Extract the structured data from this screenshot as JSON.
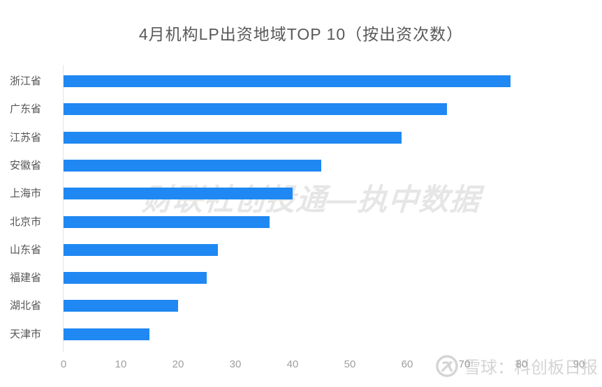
{
  "title": "4月机构LP出资地域TOP 10（按出资次数）",
  "watermarks": {
    "center": "财联社创投通—执中数据",
    "bottom_text": "雪球：科创板日报",
    "bottom_logo": "xueqiu-snowball-icon"
  },
  "colors": {
    "bar": "#2088f2",
    "title": "#595959",
    "category_label": "#555555",
    "tick_label": "#9e9e9e",
    "axis_line": "#e4e4e4",
    "watermark": "#c9c9c9"
  },
  "chart_data": {
    "type": "bar",
    "orientation": "horizontal",
    "title": "4月机构LP出资地域TOP 10（按出资次数）",
    "categories": [
      "浙江省",
      "广东省",
      "江苏省",
      "安徽省",
      "上海市",
      "北京市",
      "山东省",
      "福建省",
      "湖北省",
      "天津市"
    ],
    "values": [
      78,
      67,
      59,
      45,
      40,
      36,
      27,
      25,
      20,
      15
    ],
    "xlabel": "",
    "ylabel": "",
    "xlim": [
      0,
      90
    ],
    "x_ticks": [
      0,
      10,
      20,
      30,
      40,
      50,
      60,
      70,
      80,
      90
    ],
    "grid": false,
    "legend": false,
    "sorted": "descending"
  }
}
